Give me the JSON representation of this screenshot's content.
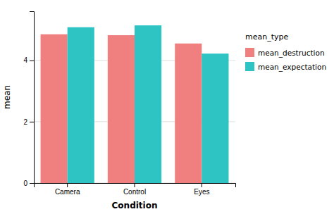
{
  "chart_data": {
    "type": "bar",
    "categories": [
      "Camera",
      "Control",
      "Eyes"
    ],
    "series": [
      {
        "name": "mean_destruction",
        "color": "#F08080",
        "values": [
          4.85,
          4.82,
          4.55
        ]
      },
      {
        "name": "mean_expectation",
        "color": "#2EC4C4",
        "values": [
          5.08,
          5.14,
          4.22
        ]
      }
    ],
    "xlabel": "Condition",
    "ylabel": "mean",
    "ylim": [
      0,
      5.6
    ],
    "yticks": [
      0,
      2,
      4
    ],
    "grid": true,
    "legend": "right",
    "legend_title": "mean_type"
  }
}
